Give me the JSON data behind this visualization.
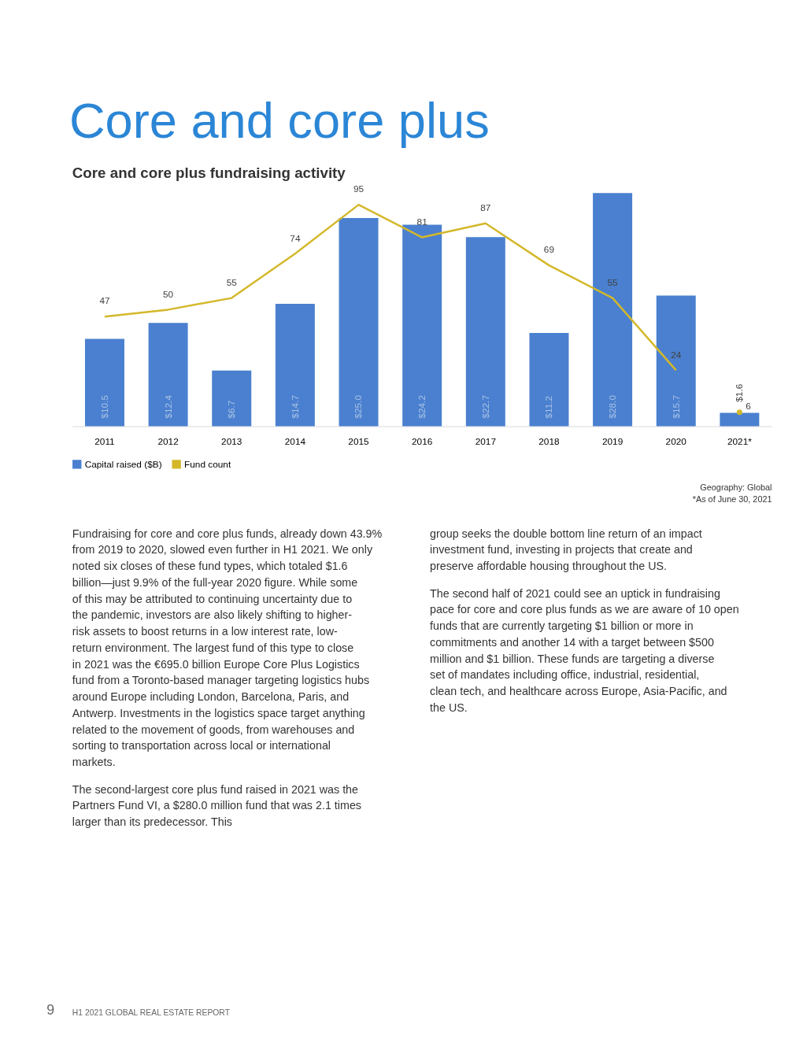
{
  "chart_data": {
    "type": "bar",
    "title": "Core and core plus",
    "subtitle": "Core and core plus fundraising activity",
    "categories": [
      "2011",
      "2012",
      "2013",
      "2014",
      "2015",
      "2016",
      "2017",
      "2018",
      "2019",
      "2020",
      "2021*"
    ],
    "series": [
      {
        "name": "Capital raised ($B)",
        "type": "bar",
        "color": "#4a80cf",
        "values": [
          10.5,
          12.4,
          6.7,
          14.7,
          25.0,
          24.2,
          22.7,
          11.2,
          28.0,
          15.7,
          1.6
        ],
        "value_labels": [
          "$10.5",
          "$12.4",
          "$6.7",
          "$14.7",
          "$25.0",
          "$24.2",
          "$22.7",
          "$11.2",
          "$28.0",
          "$15.7",
          "$1.6"
        ]
      },
      {
        "name": "Fund count",
        "type": "line",
        "axis": "y2",
        "color": "#d4b82a",
        "values": [
          47,
          50,
          55,
          74,
          95,
          81,
          87,
          69,
          55,
          24,
          null
        ],
        "value_labels": [
          "47",
          "50",
          "55",
          "74",
          "95",
          "81",
          "87",
          "69",
          "55",
          "24",
          null
        ]
      },
      {
        "type": "scatter",
        "axis": "y2",
        "color": "#d4b82a",
        "values": [
          null,
          null,
          null,
          null,
          null,
          null,
          null,
          null,
          null,
          null,
          6
        ],
        "value_labels": [
          null,
          null,
          null,
          null,
          null,
          null,
          null,
          null,
          null,
          null,
          "6"
        ]
      }
    ],
    "legend": "bottom",
    "grid": false,
    "tick_labels": "x",
    "annotations": [
      "Geography: Global",
      "*As of June 30, 2021",
      "Fundraising for core and core plus funds, already down 43.9% from 2019 to 2020, slowed even further in H1 2021. We only noted six closes of these fund types, which totaled $1.6 billion—just 9.9% of the full-year 2020 figure. While some of this may be attributed to continuing uncertainty due to the pandemic, investors are also likely shifting to higher-risk assets to boost returns in a low interest rate, low-return environment. The largest fund of this type to close in 2021 was the €695.0 billion Europe Core Plus Logistics fund from a Toronto-based manager targeting logistics hubs around Europe including London, Barcelona, Paris, and Antwerp. Investments in the logistics space target anything related to the movement of goods, from warehouses and sorting to transportation across local or international markets.",
      "The second-largest core plus fund raised in 2021 was the Partners Fund VI, a $280.0 million fund that was 2.1 times larger than its predecessor. This",
      "group seeks the double bottom line return of an impact investment fund, investing in projects that create and preserve affordable housing throughout the US.",
      "The second half of 2021 could see an uptick in fundraising pace for core and core plus funds as we are aware of 10 open funds that are currently targeting $1 billion or more in commitments and another 14 with a target between $500 million and $1 billion. These funds are targeting a diverse set of mandates including office, industrial, residential, clean tech, and healthcare across Europe, Asia-Pacific, and the US.",
      "9",
      "H1 2021 GLOBAL REAL ESTATE REPORT"
    ]
  }
}
